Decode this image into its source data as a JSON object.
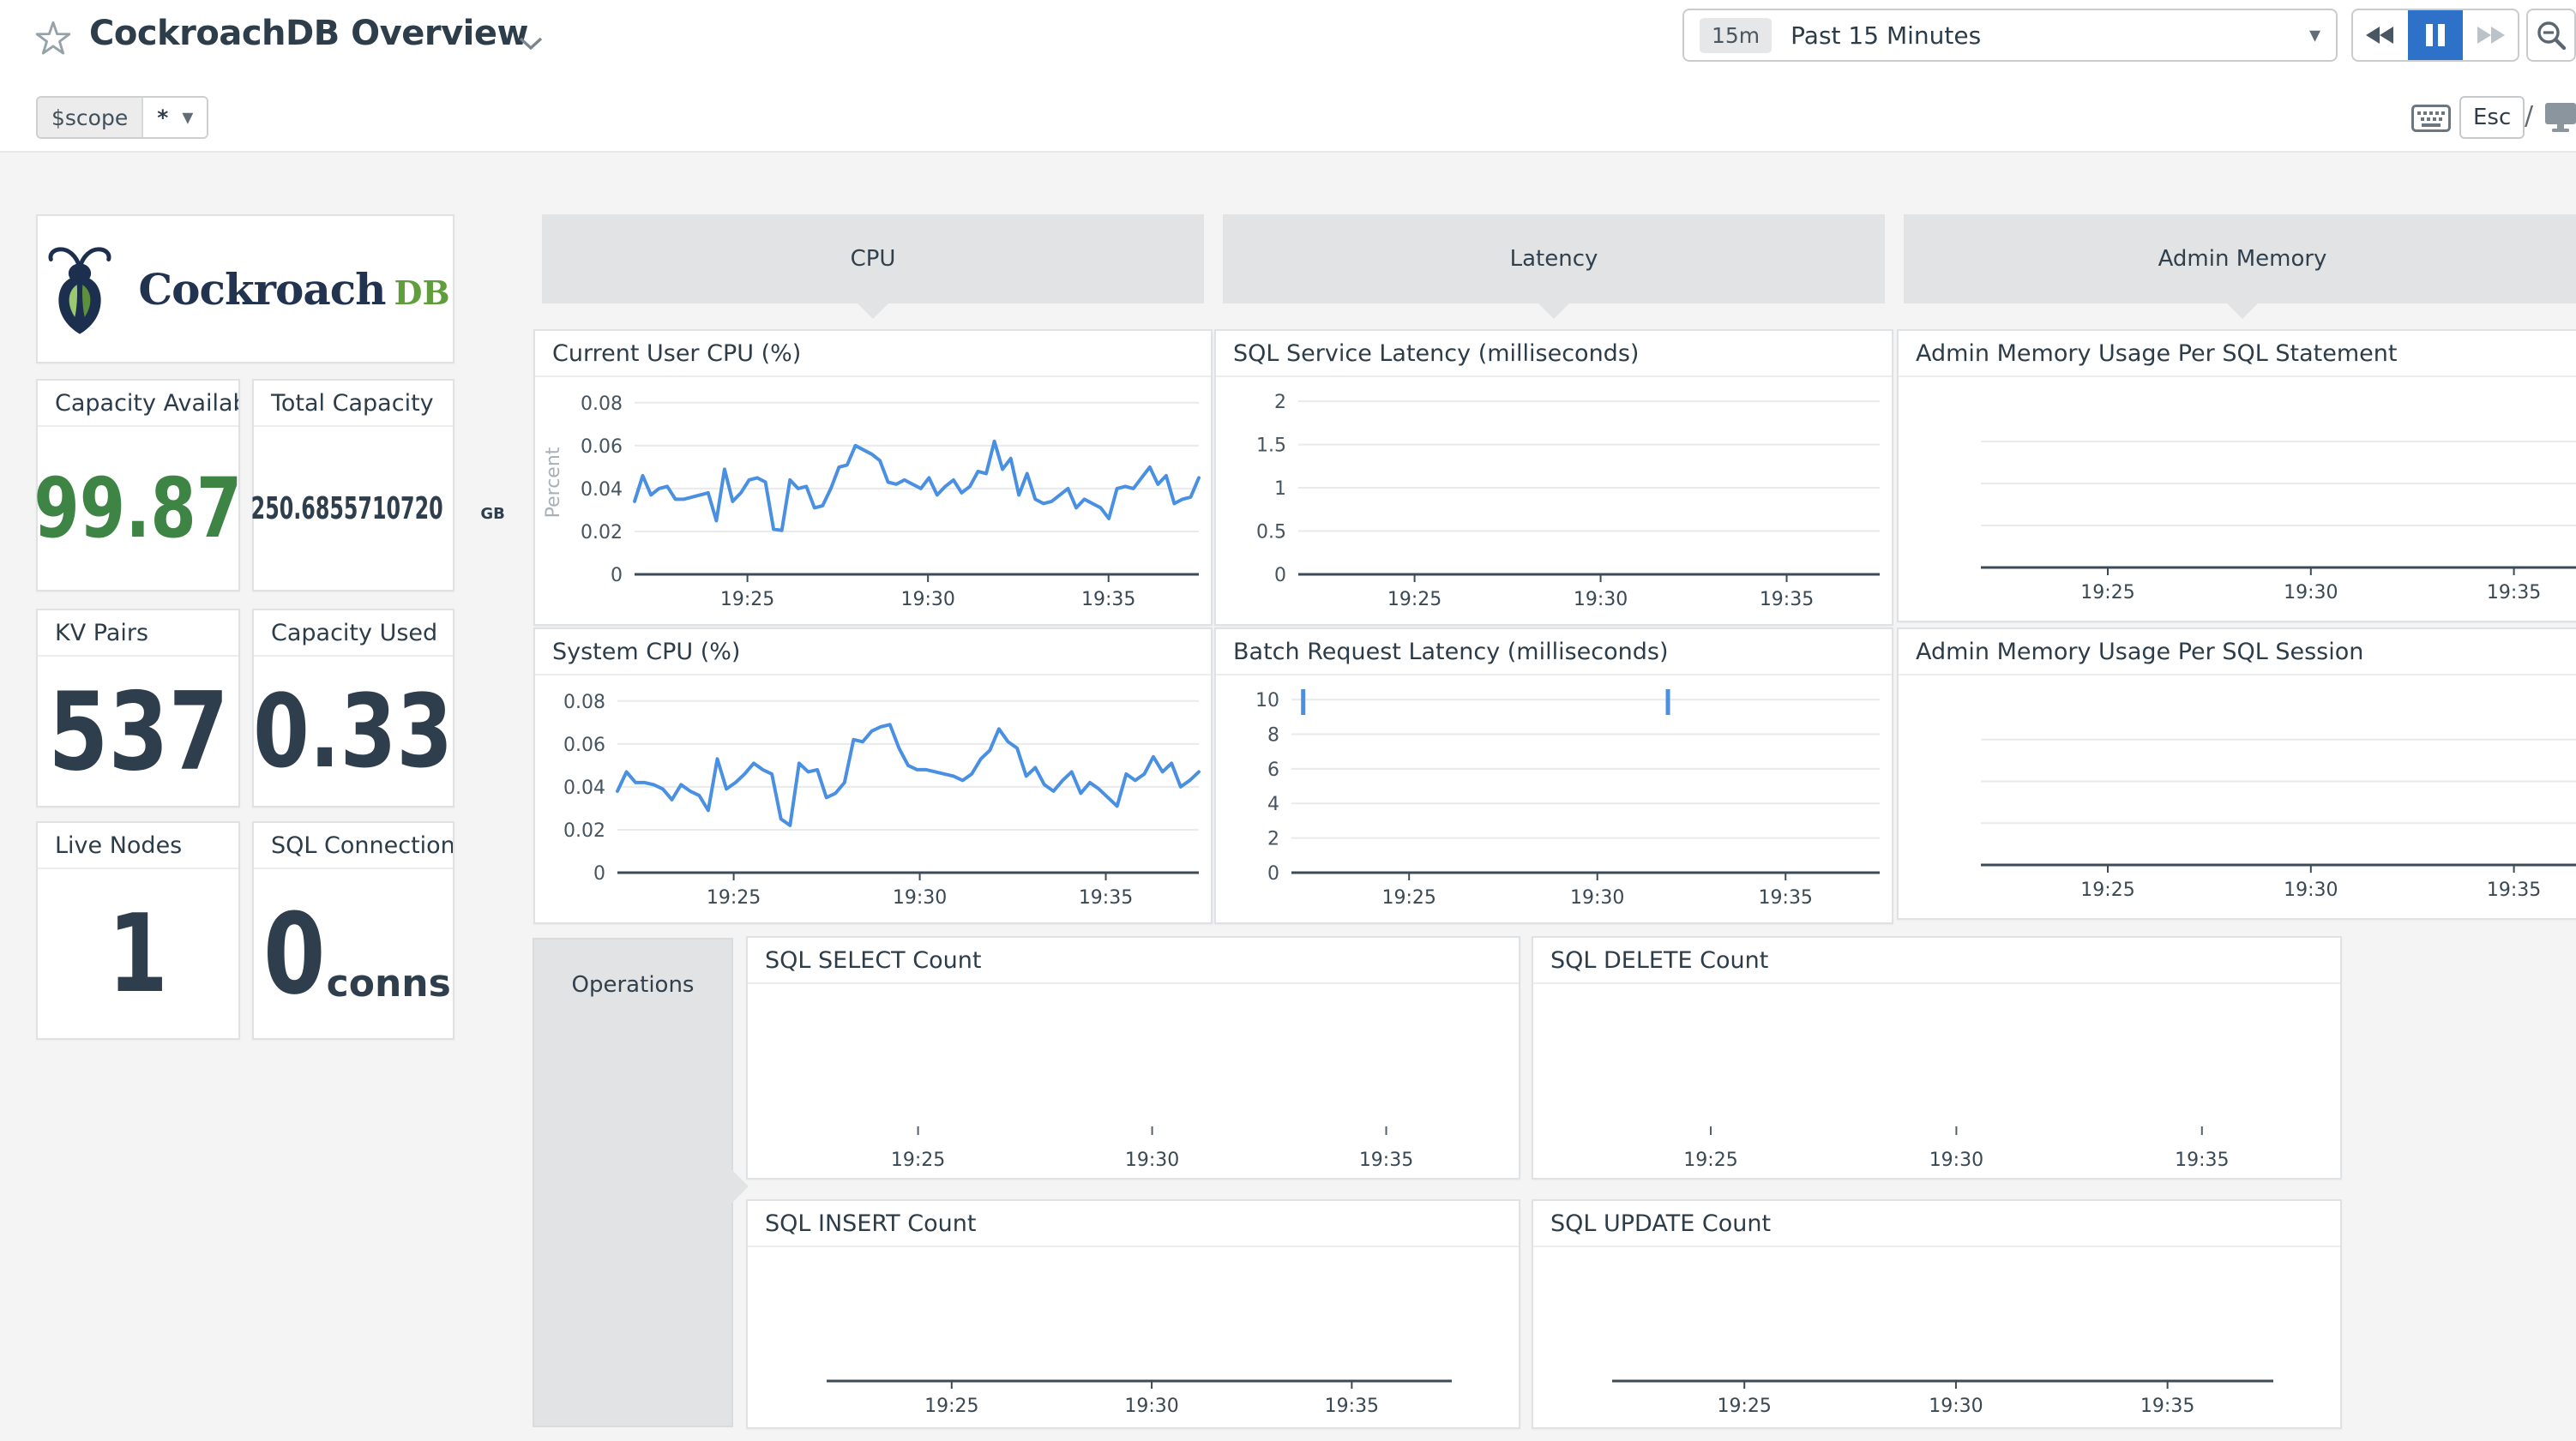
{
  "header": {
    "title": "CockroachDB Overview",
    "time": {
      "badge": "15m",
      "label": "Past 15 Minutes"
    },
    "esc_label": "Esc",
    "slash": "/"
  },
  "scope": {
    "key": "$scope",
    "value": "*"
  },
  "logo": {
    "word": "Cockroach",
    "suffix": "DB"
  },
  "groups": {
    "cpu": "CPU",
    "latency": "Latency",
    "admin_memory": "Admin Memory",
    "operations": "Operations"
  },
  "icons": {
    "favorite": "star-outline",
    "title_menu": "chevron-down",
    "time_dropdown": "caret-down",
    "rewind": "skip-back",
    "pause": "pause",
    "forward": "skip-forward",
    "zoom_out": "magnifier-minus",
    "shortcuts": "keyboard",
    "tv_mode": "monitor"
  },
  "colors": {
    "line_blue": "#4a90e2",
    "accent_blue": "#2d72c8",
    "green": "#3e8545",
    "header_gray": "#e2e3e4",
    "axis": "#3c4b57",
    "grid": "#e8eaeb",
    "tick_text": "#3a4854"
  },
  "stat_cards": [
    {
      "title": "Capacity Available...",
      "value": "99.87",
      "color": "green"
    },
    {
      "title": "Total Capacity",
      "value": "250.6855710720",
      "unit": "GB"
    },
    {
      "title": "KV Pairs",
      "value": "537"
    },
    {
      "title": "Capacity Used",
      "value": "0.33"
    },
    {
      "title": "Live Nodes",
      "value": "1"
    },
    {
      "title": "SQL Connections",
      "value": "0",
      "unit": "conns"
    }
  ],
  "chart_data": [
    {
      "type": "line",
      "title": "Current User CPU (%)",
      "ylabel": "Percent",
      "ylim": [
        0,
        0.0855
      ],
      "yticks": [
        0,
        0.02,
        0.04,
        0.06,
        0.08
      ],
      "ytick_labels": [
        "0",
        "0.02",
        "0.04",
        "0.06",
        "0.08"
      ],
      "xtick_pos": [
        0.2,
        0.52,
        0.84
      ],
      "xtick_labels": [
        "19:25",
        "19:30",
        "19:35"
      ],
      "axis_line": true,
      "ml": 116,
      "mr": 14,
      "mt": 16,
      "mb": 58,
      "values": [
        0.034,
        0.046,
        0.037,
        0.04,
        0.041,
        0.035,
        0.035,
        0.036,
        0.037,
        0.038,
        0.025,
        0.049,
        0.034,
        0.038,
        0.044,
        0.045,
        0.043,
        0.021,
        0.0205,
        0.044,
        0.04,
        0.041,
        0.031,
        0.032,
        0.04,
        0.05,
        0.051,
        0.06,
        0.058,
        0.056,
        0.053,
        0.043,
        0.042,
        0.044,
        0.042,
        0.04,
        0.045,
        0.037,
        0.041,
        0.044,
        0.038,
        0.041,
        0.048,
        0.047,
        0.062,
        0.049,
        0.054,
        0.037,
        0.047,
        0.035,
        0.033,
        0.034,
        0.037,
        0.04,
        0.031,
        0.035,
        0.033,
        0.031,
        0.026,
        0.04,
        0.041,
        0.04,
        0.045,
        0.05,
        0.042,
        0.046,
        0.033,
        0.035,
        0.036,
        0.045
      ]
    },
    {
      "type": "line",
      "title": "System CPU (%)",
      "ylim": [
        0,
        0.0855
      ],
      "yticks": [
        0,
        0.02,
        0.04,
        0.06,
        0.08
      ],
      "ytick_labels": [
        "0",
        "0.02",
        "0.04",
        "0.06",
        "0.08"
      ],
      "xtick_pos": [
        0.2,
        0.52,
        0.84
      ],
      "xtick_labels": [
        "19:25",
        "19:30",
        "19:35"
      ],
      "axis_line": true,
      "ml": 96,
      "mr": 14,
      "mt": 16,
      "mb": 58,
      "values": [
        0.038,
        0.047,
        0.042,
        0.042,
        0.041,
        0.039,
        0.034,
        0.041,
        0.038,
        0.036,
        0.029,
        0.053,
        0.039,
        0.042,
        0.046,
        0.051,
        0.048,
        0.046,
        0.025,
        0.022,
        0.051,
        0.047,
        0.048,
        0.035,
        0.037,
        0.042,
        0.062,
        0.061,
        0.066,
        0.068,
        0.069,
        0.058,
        0.05,
        0.048,
        0.048,
        0.047,
        0.046,
        0.045,
        0.043,
        0.046,
        0.053,
        0.057,
        0.067,
        0.061,
        0.058,
        0.045,
        0.049,
        0.041,
        0.038,
        0.043,
        0.047,
        0.037,
        0.042,
        0.039,
        0.035,
        0.031,
        0.046,
        0.043,
        0.046,
        0.054,
        0.047,
        0.051,
        0.04,
        0.043,
        0.047
      ]
    },
    {
      "type": "line",
      "title": "SQL Service Latency (milliseconds)",
      "ylim": [
        0,
        2.12
      ],
      "yticks": [
        0,
        0.5,
        1,
        1.5,
        2
      ],
      "ytick_labels": [
        "0",
        "0.5",
        "1",
        "1.5",
        "2"
      ],
      "xtick_pos": [
        0.2,
        0.52,
        0.84
      ],
      "xtick_labels": [
        "19:25",
        "19:30",
        "19:35"
      ],
      "axis_line": true,
      "ml": 96,
      "mr": 14,
      "mt": 16,
      "mb": 58,
      "values": []
    },
    {
      "type": "line",
      "title": "Batch Request Latency (milliseconds)",
      "ylim": [
        0,
        10.6
      ],
      "yticks": [
        0,
        2,
        4,
        6,
        8,
        10
      ],
      "ytick_labels": [
        "0",
        "2",
        "4",
        "6",
        "8",
        "10"
      ],
      "xtick_pos": [
        0.2,
        0.52,
        0.84
      ],
      "xtick_labels": [
        "19:25",
        "19:30",
        "19:35"
      ],
      "axis_line": true,
      "ml": 88,
      "mr": 14,
      "mt": 16,
      "mb": 58,
      "values": [],
      "spikes": [
        0.02,
        0.64
      ]
    },
    {
      "type": "line",
      "title": "Admin Memory Usage Per SQL Statement",
      "gridlines": 3,
      "axis_line": true,
      "xtick_pos": [
        0.2,
        0.52,
        0.84
      ],
      "xtick_labels": [
        "19:25",
        "19:30",
        "19:35"
      ],
      "ml": 96,
      "mr": 0,
      "mt": 26,
      "mb": 62,
      "values": []
    },
    {
      "type": "line",
      "title": "Admin Memory Usage Per SQL Session",
      "gridlines": 3,
      "axis_line": true,
      "xtick_pos": [
        0.2,
        0.52,
        0.84
      ],
      "xtick_labels": [
        "19:25",
        "19:30",
        "19:35"
      ],
      "ml": 96,
      "mr": 0,
      "mt": 26,
      "mb": 62,
      "values": []
    },
    {
      "type": "line",
      "title": "SQL SELECT Count",
      "tick_style": "floating",
      "axis_line": false,
      "xtick_pos": [
        0.2,
        0.52,
        0.84
      ],
      "xtick_labels": [
        "19:25",
        "19:30",
        "19:35"
      ],
      "ml": 28,
      "mr": 18,
      "mt": 8,
      "mb": 50,
      "values": []
    },
    {
      "type": "line",
      "title": "SQL DELETE Count",
      "tick_style": "floating",
      "axis_line": false,
      "xtick_pos": [
        0.2,
        0.52,
        0.84
      ],
      "xtick_labels": [
        "19:25",
        "19:30",
        "19:35"
      ],
      "ml": 28,
      "mr": 18,
      "mt": 8,
      "mb": 50,
      "values": []
    },
    {
      "type": "line",
      "title": "SQL INSERT Count",
      "axis_line": true,
      "xtick_pos": [
        0.2,
        0.52,
        0.84
      ],
      "xtick_labels": [
        "19:25",
        "19:30",
        "19:35"
      ],
      "ml": 92,
      "mr": 78,
      "mt": 8,
      "mb": 54,
      "values": []
    },
    {
      "type": "line",
      "title": "SQL UPDATE Count",
      "axis_line": true,
      "xtick_pos": [
        0.2,
        0.52,
        0.84
      ],
      "xtick_labels": [
        "19:25",
        "19:30",
        "19:35"
      ],
      "ml": 92,
      "mr": 78,
      "mt": 8,
      "mb": 54,
      "values": []
    }
  ]
}
